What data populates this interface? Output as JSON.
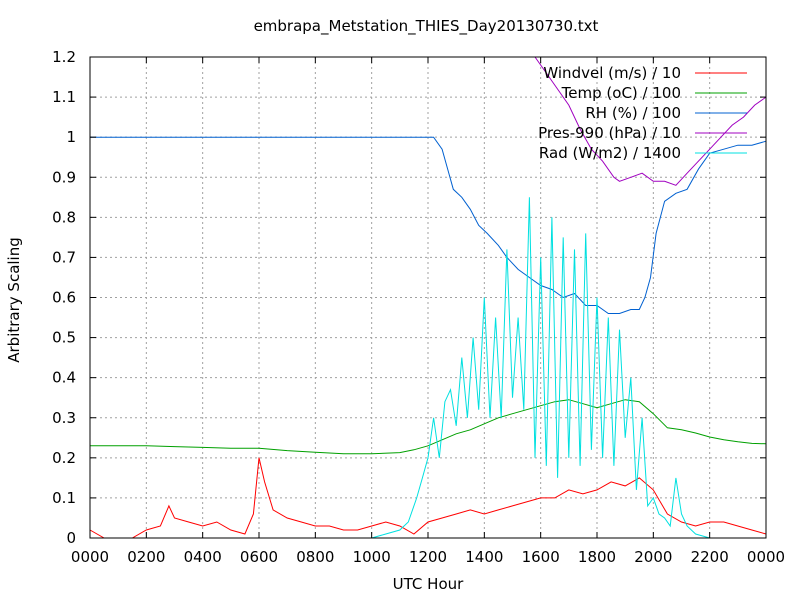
{
  "chart_data": {
    "type": "line",
    "title": "embrapa_Metstation_THIES_Day20130730.txt",
    "xlabel": "UTC Hour",
    "ylabel": "Arbitrary Scaling",
    "x_range": [
      0,
      2400
    ],
    "ylim": [
      0,
      1.2
    ],
    "x_ticks": [
      "0000",
      "0200",
      "0400",
      "0600",
      "0800",
      "1000",
      "1200",
      "1400",
      "1600",
      "1800",
      "2000",
      "2200",
      "0000"
    ],
    "y_ticks": [
      "0",
      "0.1",
      "0.2",
      "0.3",
      "0.4",
      "0.5",
      "0.6",
      "0.7",
      "0.8",
      "0.9",
      "1",
      "1.1",
      "1.2"
    ],
    "grid": true,
    "legend_position": "top-right",
    "series": [
      {
        "name": "Windvel (m/s) / 10",
        "color": "#ff0000",
        "x": [
          0,
          50,
          100,
          150,
          200,
          250,
          280,
          300,
          350,
          400,
          450,
          500,
          550,
          580,
          600,
          620,
          650,
          700,
          750,
          800,
          850,
          900,
          950,
          1000,
          1050,
          1100,
          1150,
          1200,
          1250,
          1300,
          1350,
          1400,
          1450,
          1500,
          1550,
          1600,
          1650,
          1700,
          1750,
          1800,
          1850,
          1900,
          1950,
          2000,
          2050,
          2100,
          2150,
          2200,
          2250,
          2300,
          2350,
          2400
        ],
        "values": [
          0.02,
          0.0,
          0.0,
          0.0,
          0.02,
          0.03,
          0.08,
          0.05,
          0.04,
          0.03,
          0.04,
          0.02,
          0.01,
          0.06,
          0.2,
          0.14,
          0.07,
          0.05,
          0.04,
          0.03,
          0.03,
          0.02,
          0.02,
          0.03,
          0.04,
          0.03,
          0.01,
          0.04,
          0.05,
          0.06,
          0.07,
          0.06,
          0.07,
          0.08,
          0.09,
          0.1,
          0.1,
          0.12,
          0.11,
          0.12,
          0.14,
          0.13,
          0.15,
          0.12,
          0.06,
          0.04,
          0.03,
          0.04,
          0.04,
          0.03,
          0.02,
          0.01
        ]
      },
      {
        "name": "Temp (oC) / 100",
        "color": "#00a000",
        "x": [
          0,
          100,
          200,
          300,
          400,
          500,
          600,
          700,
          800,
          900,
          1000,
          1100,
          1150,
          1200,
          1250,
          1300,
          1350,
          1400,
          1450,
          1500,
          1550,
          1600,
          1650,
          1700,
          1750,
          1800,
          1850,
          1900,
          1950,
          2000,
          2050,
          2100,
          2150,
          2200,
          2250,
          2300,
          2350,
          2400
        ],
        "values": [
          0.23,
          0.23,
          0.23,
          0.228,
          0.226,
          0.224,
          0.224,
          0.218,
          0.214,
          0.21,
          0.21,
          0.213,
          0.22,
          0.23,
          0.245,
          0.26,
          0.27,
          0.285,
          0.3,
          0.31,
          0.32,
          0.33,
          0.34,
          0.345,
          0.335,
          0.325,
          0.335,
          0.345,
          0.34,
          0.31,
          0.275,
          0.27,
          0.262,
          0.252,
          0.245,
          0.24,
          0.236,
          0.235
        ]
      },
      {
        "name": "RH (%) / 100",
        "color": "#0060d0",
        "x": [
          0,
          200,
          400,
          600,
          800,
          1000,
          1100,
          1200,
          1220,
          1250,
          1270,
          1290,
          1320,
          1350,
          1380,
          1410,
          1450,
          1480,
          1520,
          1560,
          1600,
          1640,
          1680,
          1720,
          1760,
          1800,
          1840,
          1880,
          1920,
          1950,
          1970,
          1990,
          2010,
          2040,
          2080,
          2120,
          2160,
          2200,
          2250,
          2300,
          2350,
          2400
        ],
        "values": [
          1.0,
          1.0,
          1.0,
          1.0,
          1.0,
          1.0,
          1.0,
          1.0,
          1.0,
          0.97,
          0.92,
          0.87,
          0.85,
          0.82,
          0.78,
          0.76,
          0.73,
          0.7,
          0.67,
          0.65,
          0.63,
          0.62,
          0.6,
          0.61,
          0.58,
          0.58,
          0.56,
          0.56,
          0.57,
          0.57,
          0.6,
          0.65,
          0.76,
          0.84,
          0.86,
          0.87,
          0.92,
          0.96,
          0.97,
          0.98,
          0.98,
          0.99
        ]
      },
      {
        "name": "Pres-990 (hPa) / 10",
        "color": "#a000c0",
        "x": [
          1580,
          1620,
          1660,
          1700,
          1740,
          1780,
          1820,
          1860,
          1880,
          1920,
          1960,
          2000,
          2040,
          2080,
          2120,
          2160,
          2200,
          2240,
          2280,
          2320,
          2360,
          2400
        ],
        "values": [
          1.2,
          1.16,
          1.12,
          1.08,
          1.02,
          0.97,
          0.94,
          0.9,
          0.89,
          0.9,
          0.91,
          0.89,
          0.89,
          0.88,
          0.91,
          0.94,
          0.97,
          1.0,
          1.03,
          1.05,
          1.08,
          1.1
        ]
      },
      {
        "name": "Rad (W/m2) / 1400",
        "color": "#00e0e0",
        "x": [
          0,
          200,
          400,
          600,
          800,
          1000,
          1050,
          1100,
          1130,
          1160,
          1180,
          1200,
          1220,
          1240,
          1260,
          1280,
          1300,
          1320,
          1340,
          1360,
          1380,
          1400,
          1420,
          1440,
          1460,
          1480,
          1500,
          1520,
          1540,
          1560,
          1580,
          1600,
          1620,
          1640,
          1660,
          1680,
          1700,
          1720,
          1740,
          1760,
          1780,
          1800,
          1820,
          1840,
          1860,
          1880,
          1900,
          1920,
          1940,
          1960,
          1980,
          2000,
          2020,
          2040,
          2060,
          2080,
          2100,
          2120,
          2150,
          2200,
          2300,
          2400
        ],
        "values": [
          0.0,
          0.0,
          0.0,
          0.0,
          0.0,
          0.0,
          0.01,
          0.02,
          0.04,
          0.1,
          0.15,
          0.2,
          0.3,
          0.2,
          0.34,
          0.37,
          0.28,
          0.45,
          0.3,
          0.5,
          0.32,
          0.6,
          0.3,
          0.55,
          0.3,
          0.72,
          0.35,
          0.55,
          0.32,
          0.85,
          0.2,
          0.7,
          0.18,
          0.8,
          0.15,
          0.75,
          0.2,
          0.72,
          0.18,
          0.76,
          0.22,
          0.6,
          0.2,
          0.55,
          0.18,
          0.52,
          0.25,
          0.4,
          0.12,
          0.3,
          0.08,
          0.1,
          0.06,
          0.05,
          0.03,
          0.15,
          0.06,
          0.03,
          0.01,
          0.0,
          0.0,
          0.0
        ]
      }
    ]
  }
}
